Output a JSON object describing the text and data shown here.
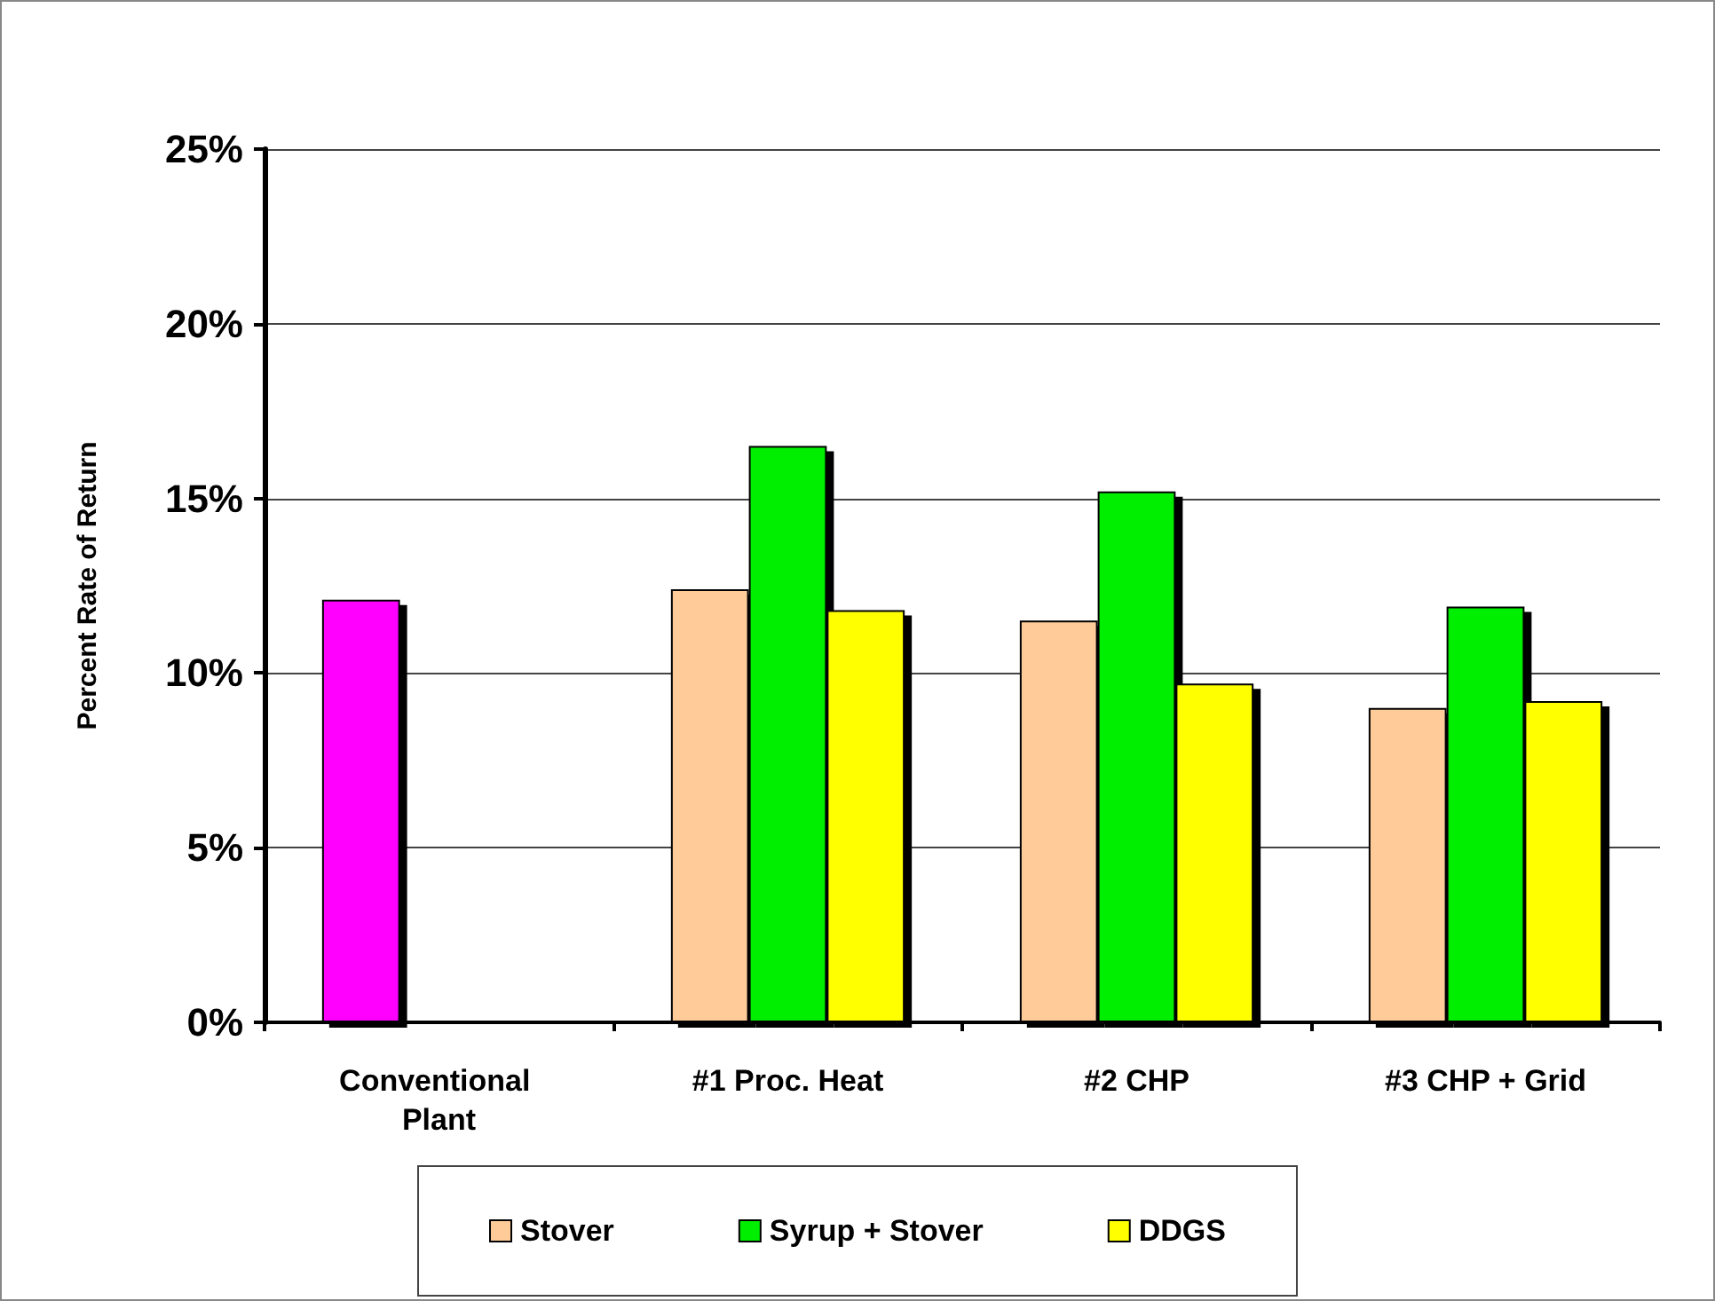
{
  "chart_data": {
    "type": "bar",
    "ylabel": "Percent Rate of Return",
    "categories": [
      "Conventional Plant",
      "#1 Proc. Heat",
      "#2 CHP",
      "#3 CHP + Grid"
    ],
    "series": [
      {
        "name": "Stover",
        "color": "#ffcc99",
        "colors": [
          "#ff00ff",
          "#ffcc99",
          "#ffcc99",
          "#ffcc99"
        ],
        "values": [
          12.1,
          12.4,
          11.5,
          9.0
        ]
      },
      {
        "name": "Syrup + Stover",
        "color": "#00ee00",
        "values": [
          null,
          16.5,
          15.2,
          11.9
        ]
      },
      {
        "name": "DDGS",
        "color": "#ffff00",
        "values": [
          null,
          11.8,
          9.7,
          9.2
        ]
      }
    ],
    "ylim": [
      0,
      25
    ],
    "yticks": [
      {
        "value": 0,
        "label": "0%"
      },
      {
        "value": 5,
        "label": "5%"
      },
      {
        "value": 10,
        "label": "10%"
      },
      {
        "value": 15,
        "label": "15%"
      },
      {
        "value": 20,
        "label": "20%"
      },
      {
        "value": 25,
        "label": "25%"
      }
    ],
    "grid": "y",
    "legend": "bottom"
  }
}
